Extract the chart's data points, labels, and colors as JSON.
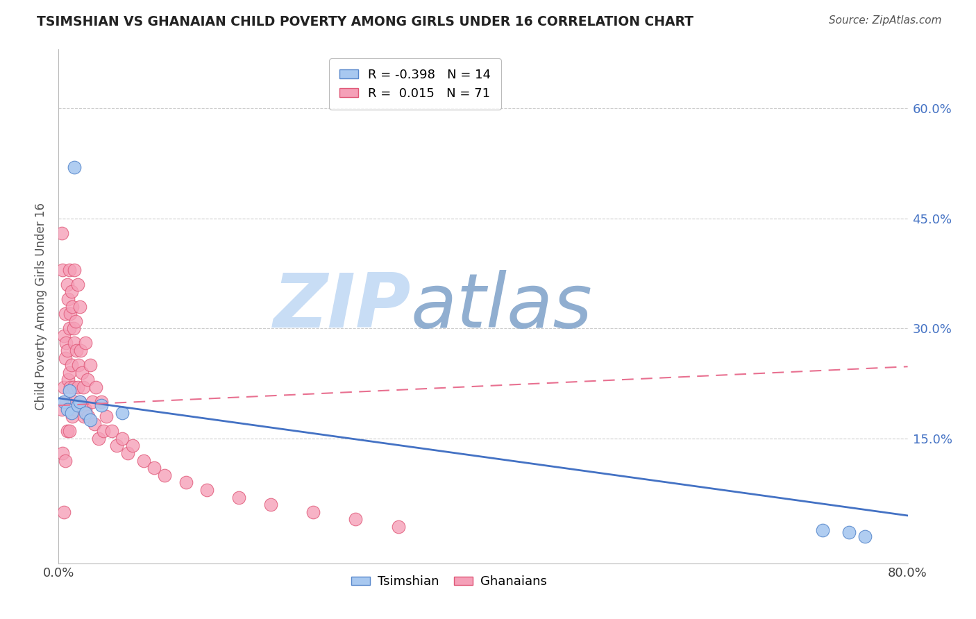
{
  "title": "TSIMSHIAN VS GHANAIAN CHILD POVERTY AMONG GIRLS UNDER 16 CORRELATION CHART",
  "source": "Source: ZipAtlas.com",
  "ylabel": "Child Poverty Among Girls Under 16",
  "ytick_labels": [
    "60.0%",
    "45.0%",
    "30.0%",
    "15.0%"
  ],
  "ytick_values": [
    0.6,
    0.45,
    0.3,
    0.15
  ],
  "xlim": [
    0.0,
    0.8
  ],
  "ylim": [
    -0.02,
    0.68
  ],
  "legend_label1": "R = -0.398   N = 14",
  "legend_label2": "R =  0.015   N = 71",
  "tsimshian_color": "#a8c8f0",
  "ghanaian_color": "#f5a0b8",
  "tsimshian_edge": "#5888cc",
  "ghanaian_edge": "#e05878",
  "trend_tsimshian_color": "#4472c4",
  "trend_ghanaian_color": "#e87090",
  "grid_color": "#cccccc",
  "background_color": "#ffffff",
  "tsimshian_x": [
    0.005,
    0.008,
    0.01,
    0.012,
    0.015,
    0.018,
    0.02,
    0.025,
    0.03,
    0.04,
    0.06,
    0.72,
    0.745,
    0.76
  ],
  "tsimshian_y": [
    0.2,
    0.19,
    0.215,
    0.185,
    0.52,
    0.195,
    0.2,
    0.185,
    0.175,
    0.195,
    0.185,
    0.025,
    0.022,
    0.017
  ],
  "ghanaian_x": [
    0.003,
    0.003,
    0.004,
    0.004,
    0.005,
    0.005,
    0.005,
    0.006,
    0.006,
    0.006,
    0.007,
    0.007,
    0.008,
    0.008,
    0.008,
    0.009,
    0.009,
    0.01,
    0.01,
    0.01,
    0.01,
    0.011,
    0.011,
    0.012,
    0.012,
    0.013,
    0.013,
    0.014,
    0.014,
    0.015,
    0.015,
    0.015,
    0.016,
    0.016,
    0.017,
    0.018,
    0.018,
    0.019,
    0.02,
    0.02,
    0.021,
    0.022,
    0.023,
    0.024,
    0.025,
    0.025,
    0.027,
    0.028,
    0.03,
    0.032,
    0.034,
    0.035,
    0.038,
    0.04,
    0.042,
    0.045,
    0.05,
    0.055,
    0.06,
    0.065,
    0.07,
    0.08,
    0.09,
    0.1,
    0.12,
    0.14,
    0.17,
    0.2,
    0.24,
    0.28,
    0.32
  ],
  "ghanaian_y": [
    0.43,
    0.19,
    0.38,
    0.13,
    0.29,
    0.22,
    0.05,
    0.32,
    0.26,
    0.12,
    0.28,
    0.2,
    0.36,
    0.27,
    0.16,
    0.34,
    0.23,
    0.38,
    0.3,
    0.24,
    0.16,
    0.32,
    0.22,
    0.35,
    0.25,
    0.33,
    0.18,
    0.3,
    0.22,
    0.38,
    0.28,
    0.2,
    0.31,
    0.19,
    0.27,
    0.36,
    0.22,
    0.25,
    0.33,
    0.2,
    0.27,
    0.24,
    0.22,
    0.18,
    0.28,
    0.19,
    0.23,
    0.18,
    0.25,
    0.2,
    0.17,
    0.22,
    0.15,
    0.2,
    0.16,
    0.18,
    0.16,
    0.14,
    0.15,
    0.13,
    0.14,
    0.12,
    0.11,
    0.1,
    0.09,
    0.08,
    0.07,
    0.06,
    0.05,
    0.04,
    0.03
  ],
  "trend_tsim_x0": 0.0,
  "trend_tsim_y0": 0.205,
  "trend_tsim_x1": 0.8,
  "trend_tsim_y1": 0.045,
  "trend_ghan_x0": 0.0,
  "trend_ghan_y0": 0.195,
  "trend_ghan_x1": 0.8,
  "trend_ghan_y1": 0.248
}
